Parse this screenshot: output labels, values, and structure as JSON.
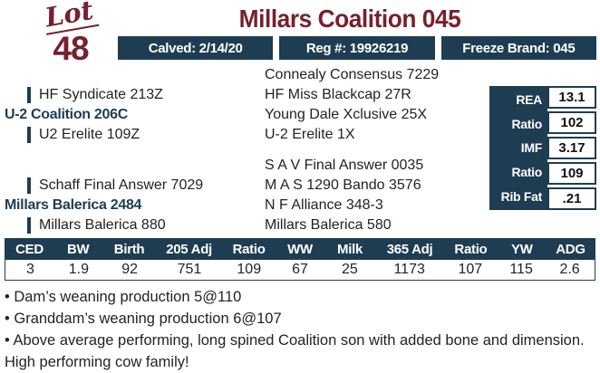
{
  "lot": {
    "label": "Lot",
    "number": "48"
  },
  "title": "Millars Coalition 045",
  "info_buttons": [
    {
      "label": "Calved: 2/14/20"
    },
    {
      "label": "Reg #: 19926219"
    },
    {
      "label": "Freeze Brand: 045"
    }
  ],
  "pedigree": {
    "sire_group": {
      "grandsire": "HF Syndicate 213Z",
      "parent": "U-2 Coalition 206C",
      "granddam": "U2 Erelite 109Z",
      "ancestors": [
        "Connealy Consensus 7229",
        "HF Miss Blackcap 27R",
        "Young Dale Xclusive 25X",
        "U-2 Erelite 1X"
      ]
    },
    "dam_group": {
      "grandsire": "Schaff Final Answer 7029",
      "parent": "Millars Balerica 2484",
      "granddam": "Millars Balerica 880",
      "ancestors": [
        "S A V Final Answer 0035",
        "M A S 1290 Bando 3576",
        "N F Alliance 348-3",
        "Millars Balerica 580"
      ]
    }
  },
  "carcass_stats": [
    {
      "label": "REA",
      "value": "13.1"
    },
    {
      "label": "Ratio",
      "value": "102"
    },
    {
      "label": "IMF",
      "value": "3.17"
    },
    {
      "label": "Ratio",
      "value": "109"
    },
    {
      "label": "Rib Fat",
      "value": ".21"
    }
  ],
  "performance_table": {
    "headers": [
      "CED",
      "BW",
      "Birth",
      "205 Adj",
      "Ratio",
      "WW",
      "Milk",
      "365 Adj",
      "Ratio",
      "YW",
      "ADG"
    ],
    "values": [
      "3",
      "1.9",
      "92",
      "751",
      "109",
      "67",
      "25",
      "1173",
      "107",
      "115",
      "2.6"
    ]
  },
  "notes": [
    "• Dam’s weaning production 5@110",
    "• Granddam’s weaning production 6@107",
    "• Above average performing, long spined Coalition son with added bone and dimension. High performing cow family!"
  ],
  "colors": {
    "maroon": "#76212f",
    "navy": "#1e3d52",
    "text": "#232323"
  }
}
